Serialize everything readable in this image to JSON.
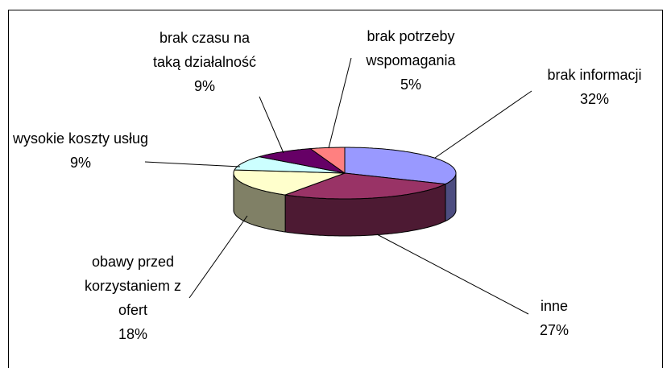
{
  "chart_data": {
    "type": "pie",
    "categories": [
      "brak informacji",
      "inne",
      "obawy przed korzystaniem z ofert",
      "wysokie koszty usług",
      "brak czasu na taką działalność",
      "brak potrzeby wspomagania"
    ],
    "values": [
      32,
      27,
      18,
      9,
      9,
      5
    ],
    "value_labels": [
      "32%",
      "27%",
      "18%",
      "9%",
      "9%",
      "5%"
    ],
    "colors": [
      "#9999ff",
      "#993366",
      "#ffffcc",
      "#ccffff",
      "#660066",
      "#ff8080"
    ],
    "three_d": true
  }
}
